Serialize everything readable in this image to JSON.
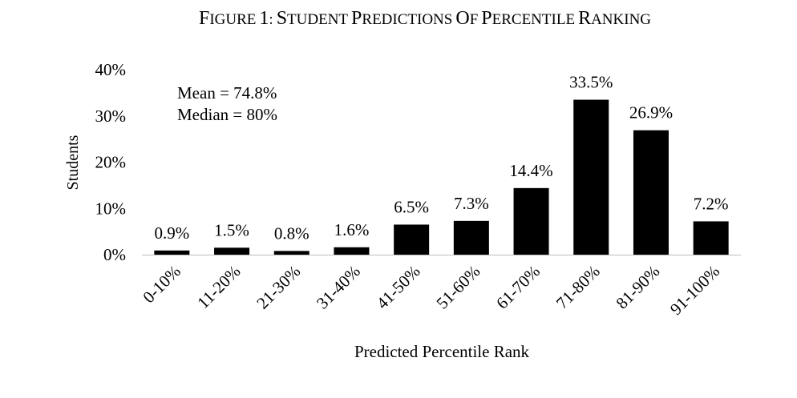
{
  "chart_data": {
    "type": "bar",
    "title": "Figure 1: Student Predictions of Percentile Ranking",
    "xlabel": "Predicted Percentile Rank",
    "ylabel": "Students",
    "categories": [
      "0-10%",
      "11-20%",
      "21-30%",
      "31-40%",
      "41-50%",
      "51-60%",
      "61-70%",
      "71-80%",
      "81-90%",
      "91-100%"
    ],
    "values": [
      0.9,
      1.5,
      0.8,
      1.6,
      6.5,
      7.3,
      14.4,
      33.5,
      26.9,
      7.2
    ],
    "data_labels": [
      "0.9%",
      "1.5%",
      "0.8%",
      "1.6%",
      "6.5%",
      "7.3%",
      "14.4%",
      "33.5%",
      "26.9%",
      "7.2%"
    ],
    "ylim": [
      0,
      40
    ],
    "yticks": [
      0,
      10,
      20,
      30,
      40
    ],
    "ytick_labels": [
      "0%",
      "10%",
      "20%",
      "30%",
      "40%"
    ],
    "grid": false,
    "bar_color": "#000000",
    "annotations": [
      "Mean = 74.8%",
      "Median = 80%"
    ]
  }
}
